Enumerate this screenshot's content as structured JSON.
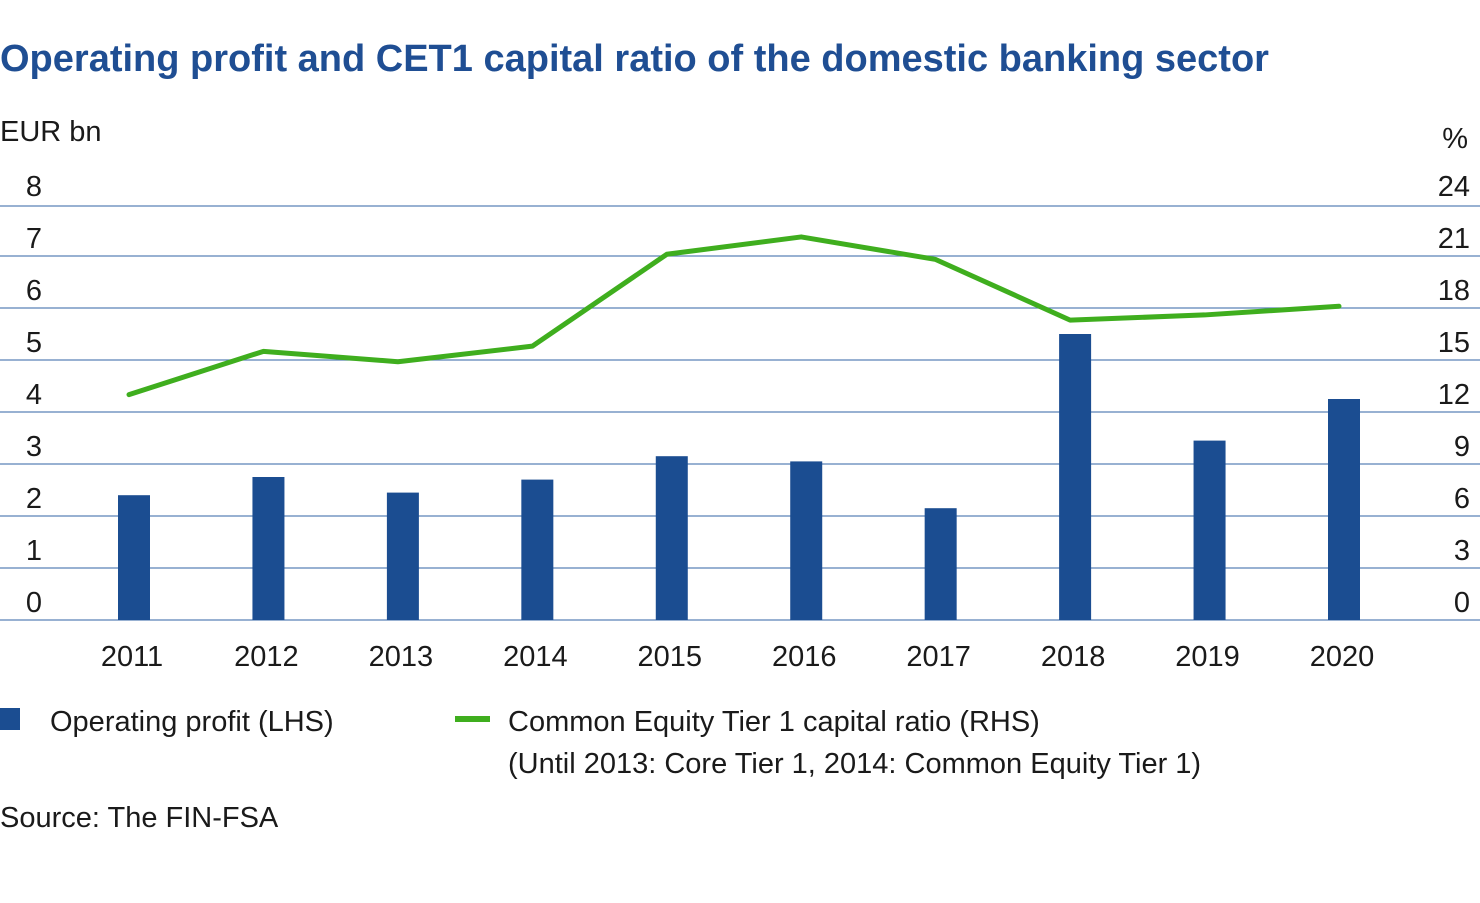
{
  "colors": {
    "bar": "#1b4d91",
    "line": "#3fae1e",
    "grid": "#5b82b8",
    "title": "#1f4e93"
  },
  "chart_data": {
    "type": "bar",
    "title": "Operating profit and CET1 capital ratio of the domestic banking sector",
    "categories": [
      "2011",
      "2012",
      "2013",
      "2014",
      "2015",
      "2016",
      "2017",
      "2018",
      "2019",
      "2020"
    ],
    "left_axis": {
      "unit": "EUR bn",
      "ylim": [
        0,
        8
      ],
      "ticks": [
        0,
        1,
        2,
        3,
        4,
        5,
        6,
        7,
        8
      ]
    },
    "right_axis": {
      "unit": "%",
      "ylim": [
        0,
        24
      ],
      "ticks": [
        0,
        3,
        6,
        9,
        12,
        15,
        18,
        21,
        24
      ]
    },
    "grid": true,
    "legend_placement": "bottom",
    "series": [
      {
        "name": "Operating profit (LHS)",
        "type": "bar",
        "axis": "left",
        "values": [
          2.4,
          2.75,
          2.45,
          2.7,
          3.15,
          3.05,
          2.15,
          5.5,
          3.45,
          4.25
        ]
      },
      {
        "name": "Common Equity Tier 1 capital ratio (RHS)",
        "name_note": "(Until 2013: Core Tier 1, 2014: Common Equity Tier 1)",
        "type": "line",
        "axis": "right",
        "values": [
          13.0,
          15.5,
          14.9,
          15.8,
          21.1,
          22.1,
          20.8,
          17.3,
          17.6,
          18.1
        ]
      }
    ],
    "source": "Source: The FIN-FSA"
  }
}
